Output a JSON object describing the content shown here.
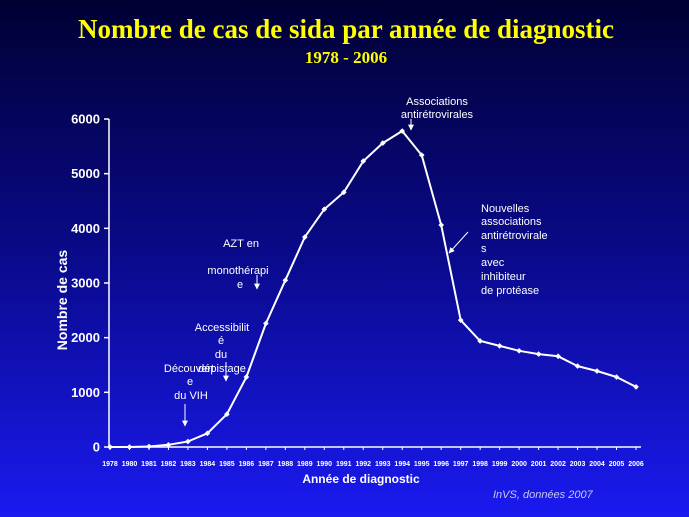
{
  "colors": {
    "background_top": "#000033",
    "background_bottom": "#1a1af0",
    "title": "#ffff00",
    "text": "#ffffff",
    "series": "#ffffff",
    "source": "#c8c8f0"
  },
  "chart_data": {
    "type": "line",
    "title": "Nombre de cas de sida par année de diagnostic",
    "subtitle": "1978 - 2006",
    "xlabel": "Année de diagnostic",
    "ylabel": "Nombre de cas",
    "ylim": [
      0,
      6000
    ],
    "yticks": [
      0,
      1000,
      2000,
      3000,
      4000,
      5000,
      6000
    ],
    "grid": false,
    "categories": [
      "1978",
      "1980",
      "1981",
      "1982",
      "1983",
      "1984",
      "1985",
      "1986",
      "1987",
      "1988",
      "1989",
      "1990",
      "1991",
      "1992",
      "1993",
      "1994",
      "1995",
      "1996",
      "1997",
      "1998",
      "1999",
      "2000",
      "2001",
      "2002",
      "2003",
      "2004",
      "2005",
      "2006"
    ],
    "series": [
      {
        "values": [
          0,
          0,
          10,
          40,
          100,
          250,
          600,
          1280,
          2260,
          3050,
          3840,
          4350,
          4660,
          5230,
          5560,
          5780,
          5340,
          4060,
          2320,
          1940,
          1850,
          1760,
          1700,
          1660,
          1480,
          1390,
          1280,
          1100
        ]
      }
    ],
    "annotations": [
      {
        "lines": [
          "Découvert",
          "e",
          "du VIH"
        ]
      },
      {
        "lines": [
          "Accessibilit",
          "é",
          "du",
          "dépistage"
        ]
      },
      {
        "lines": [
          "AZT en",
          "monothérapi",
          "e"
        ]
      },
      {
        "lines": [
          "Associations",
          "antirétrovirales"
        ]
      },
      {
        "lines": [
          "Nouvelles",
          "associations",
          "antirétrovirale",
          "s",
          "avec",
          "inhibiteur",
          "de protéase"
        ]
      }
    ],
    "source": "InVS, données 2007"
  }
}
